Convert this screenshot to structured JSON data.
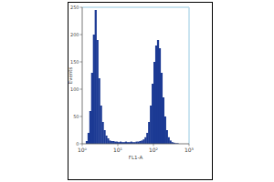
{
  "chart_data": {
    "type": "histogram",
    "x_label": "FL1-A",
    "y_label": "Events",
    "bins": [
      1,
      1.122,
      1.259,
      1.413,
      1.585,
      1.778,
      1.995,
      2.239,
      2.512,
      2.818,
      3.162,
      3.548,
      3.981,
      4.467,
      5.012,
      5.623,
      6.31,
      7.079,
      7.943,
      8.913,
      10,
      11.22,
      12.59,
      14.13,
      15.85,
      17.78,
      19.95,
      22.39,
      25.12,
      28.18,
      31.62,
      35.48,
      39.81,
      44.67,
      50.12,
      56.23,
      63.1,
      70.79,
      79.43,
      89.13,
      100,
      112.2,
      125.9,
      141.3,
      158.5,
      177.8,
      199.5,
      223.9,
      251.2,
      281.8,
      316.2,
      354.8,
      398.1,
      446.7,
      501.2,
      562.3,
      631,
      707.9,
      794.3,
      891.3,
      1000
    ],
    "counts": [
      0,
      0,
      5,
      20,
      60,
      130,
      200,
      245,
      190,
      120,
      70,
      40,
      25,
      15,
      10,
      6,
      5,
      5,
      4,
      4,
      3,
      4,
      3,
      3,
      4,
      3,
      3,
      4,
      3,
      3,
      4,
      4,
      5,
      6,
      8,
      12,
      20,
      40,
      70,
      110,
      150,
      180,
      190,
      175,
      130,
      85,
      50,
      25,
      12,
      6,
      3,
      2,
      1,
      1,
      0,
      0,
      0,
      0,
      0,
      0
    ],
    "color": "#1c3a94",
    "xlim": [
      1,
      1000
    ],
    "xticks": [
      {
        "value": 1,
        "label": "10⁰"
      },
      {
        "value": 10,
        "label": "10¹"
      },
      {
        "value": 100,
        "label": "10²"
      },
      {
        "value": 1000,
        "label": "10³"
      }
    ],
    "ylim": [
      0,
      250
    ],
    "yticks": [
      0,
      50,
      100,
      150,
      200,
      250
    ],
    "log": "x"
  }
}
